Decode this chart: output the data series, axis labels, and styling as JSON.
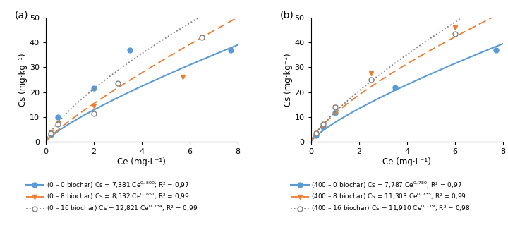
{
  "panel_a": {
    "title": "(a)",
    "xlabel": "Ce (mg·L⁻¹)",
    "ylabel": "Cs (mg·kg⁻¹)",
    "xlim": [
      0,
      8
    ],
    "ylim": [
      0,
      50
    ],
    "xticks": [
      0,
      2,
      4,
      6,
      8
    ],
    "yticks": [
      0,
      10,
      20,
      30,
      40,
      50
    ],
    "freundlich": [
      {
        "Kf": 7.381,
        "n": 0.8
      },
      {
        "Kf": 8.532,
        "n": 0.851
      },
      {
        "Kf": 12.821,
        "n": 0.734
      }
    ],
    "data_points": [
      {
        "Ce": [
          0.22,
          0.5,
          2.0,
          3.5,
          7.7
        ],
        "Cs": [
          3.0,
          10.0,
          21.5,
          37.0,
          37.0
        ]
      },
      {
        "Ce": [
          0.22,
          0.5,
          2.0,
          5.7
        ],
        "Cs": [
          4.0,
          7.3,
          14.5,
          26.0
        ]
      },
      {
        "Ce": [
          0.22,
          0.5,
          2.0,
          3.0,
          6.5
        ],
        "Cs": [
          3.5,
          7.0,
          11.5,
          23.5,
          42.0
        ]
      }
    ]
  },
  "panel_b": {
    "title": "(b)",
    "xlabel": "Ce (mg·L⁻¹)",
    "ylabel": "Cs (mg·kg⁻¹)",
    "xlim": [
      0,
      8
    ],
    "ylim": [
      0,
      50
    ],
    "xticks": [
      0,
      2,
      4,
      6,
      8
    ],
    "yticks": [
      0,
      10,
      20,
      30,
      40,
      50
    ],
    "freundlich": [
      {
        "Kf": 7.787,
        "n": 0.78
      },
      {
        "Kf": 11.303,
        "n": 0.735
      },
      {
        "Kf": 11.91,
        "n": 0.779
      }
    ],
    "data_points": [
      {
        "Ce": [
          0.22,
          0.5,
          1.0,
          3.5,
          7.7
        ],
        "Cs": [
          2.5,
          6.0,
          11.7,
          22.0,
          37.0
        ]
      },
      {
        "Ce": [
          0.22,
          0.5,
          1.0,
          2.5,
          6.0
        ],
        "Cs": [
          3.5,
          6.5,
          14.0,
          27.5,
          46.0
        ]
      },
      {
        "Ce": [
          0.22,
          0.5,
          1.0,
          2.5,
          6.0
        ],
        "Cs": [
          3.5,
          7.0,
          14.0,
          25.0,
          43.5
        ]
      }
    ]
  },
  "legend_a": [
    "(0 – 0 biochar) Cs = 7,381 Ce$^{0,800}$; R² = 0,97",
    "(0 – 8 biochar) Cs = 8,532 Ce$^{0,851}$; R² = 0,99",
    "(0 – 16 biochar) Cs = 12,821 Ce$^{0,734}$; R² = 0,99"
  ],
  "legend_b": [
    "(400 – 0 biochar) Cs = 7,787 Ce$^{0,780}$; R² = 0,97",
    "(400 – 8 biochar) Cs = 11,303 Ce$^{0,735}$; R² = 0,99",
    "(400 – 16 biochar) Cs = 11,910 Ce$^{0,779}$; R² = 0,98"
  ],
  "colors": [
    "#5b9bd5",
    "#ed7d31",
    "#808080"
  ],
  "linestyles": [
    "solid",
    "dashed",
    "dotted"
  ],
  "linewidths": [
    1.5,
    1.3,
    1.3
  ],
  "markers": [
    "o",
    "v",
    "o"
  ],
  "marker_fills": [
    "full",
    "full",
    "none"
  ],
  "markersize": 5
}
